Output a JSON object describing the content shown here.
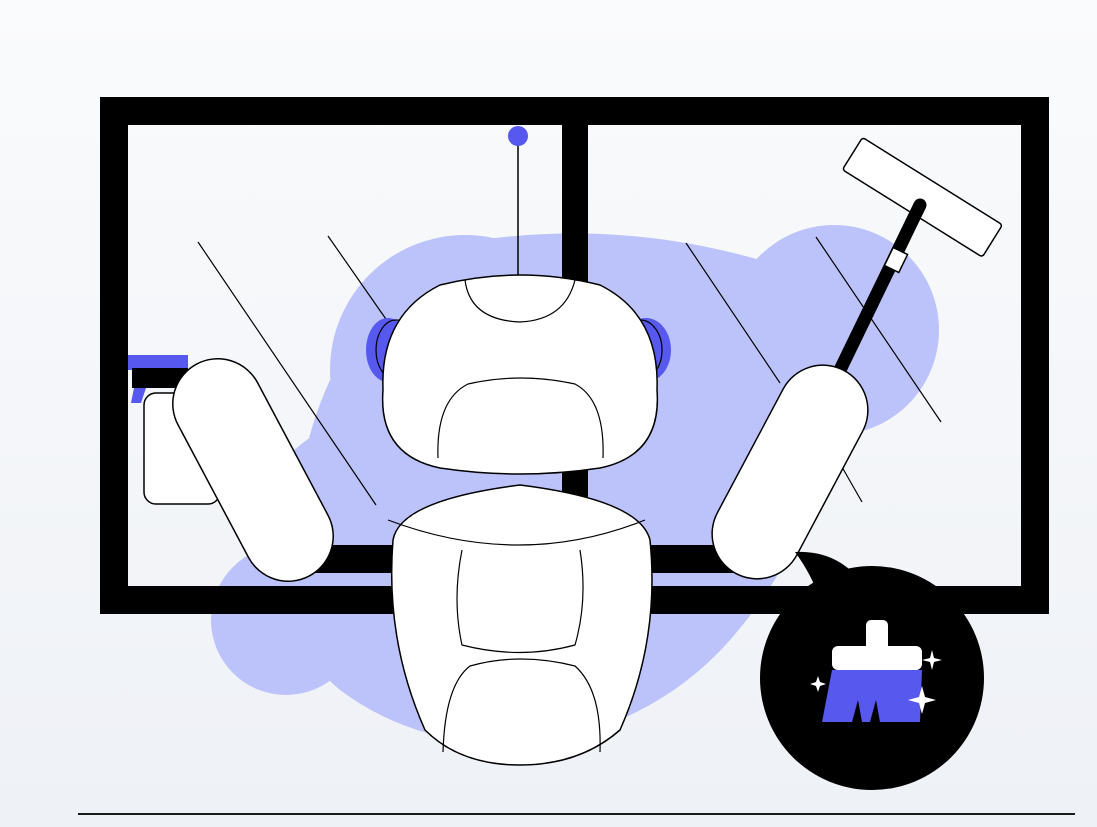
{
  "illustration": {
    "subject": "robot-cleaning-window",
    "icons": [
      "spray-bottle-icon",
      "squeegee-icon",
      "broom-icon",
      "sparkle-icon"
    ],
    "colors": {
      "background_top": "#fafbfc",
      "background_bottom": "#eef1f6",
      "outline": "#000000",
      "blob": "#bcc3fb",
      "accent": "#5658ee",
      "robot_body": "#ffffff",
      "badge": "#000000"
    }
  }
}
